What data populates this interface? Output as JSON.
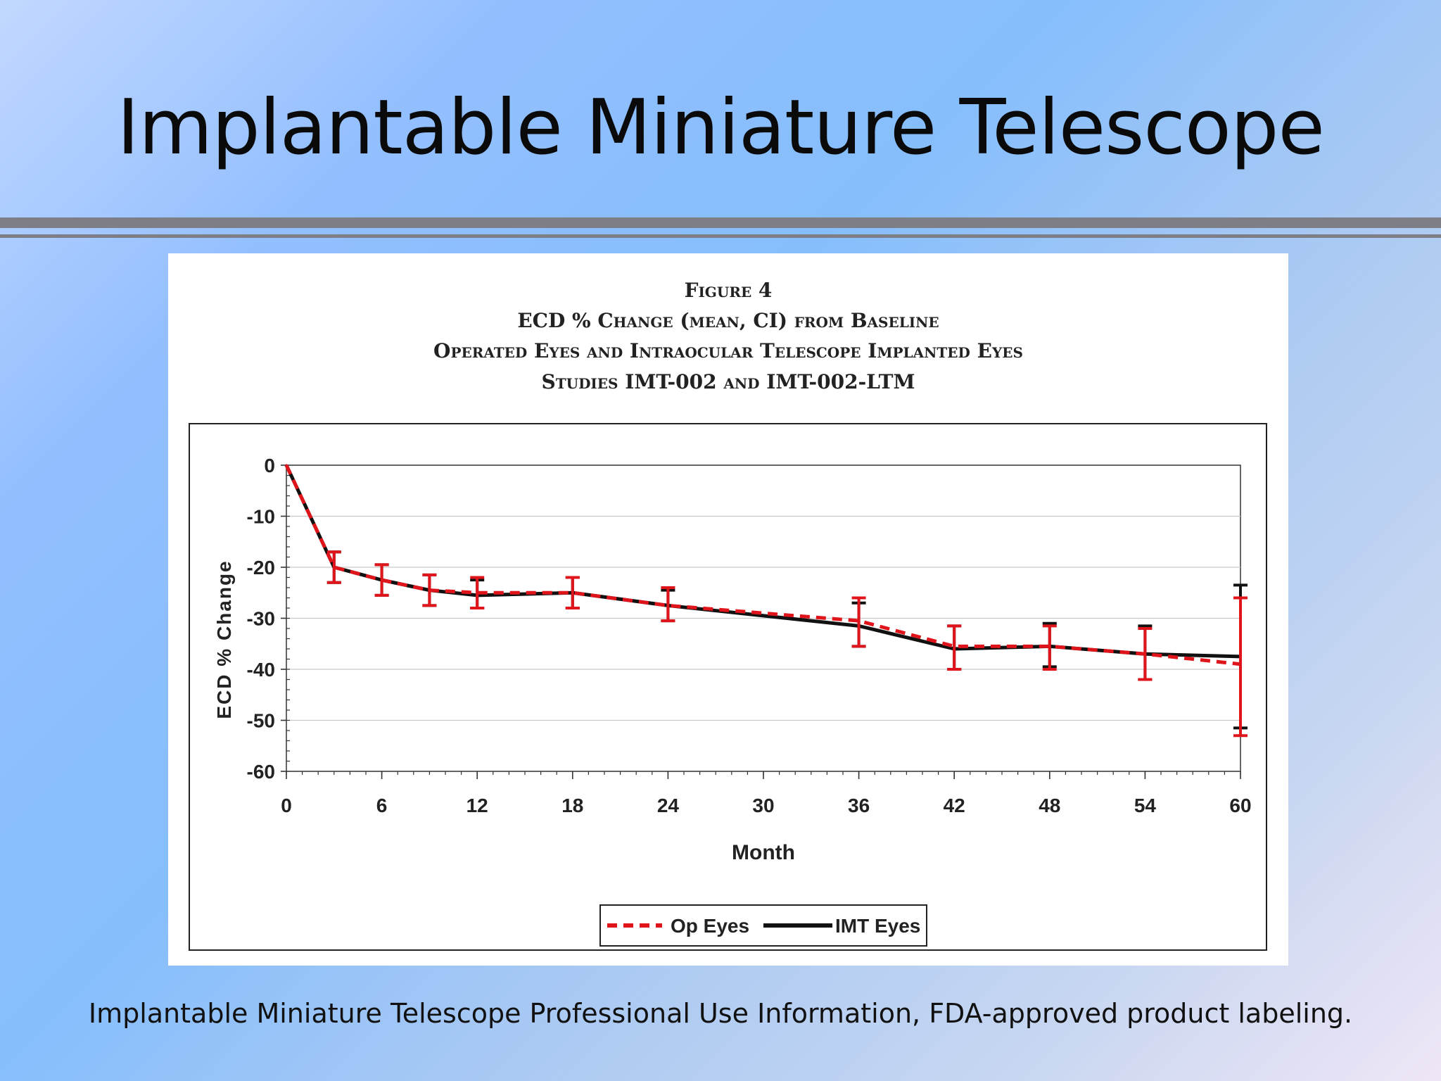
{
  "slide": {
    "title": "Implantable Miniature Telescope",
    "source": "Implantable Miniature Telescope Professional Use Information, FDA-approved product labeling."
  },
  "figure": {
    "caption_lines": [
      "Figure 4",
      "ECD % Change (mean, CI) from Baseline",
      "Operated Eyes and Intraocular Telescope Implanted Eyes",
      "Studies IMT-002 and IMT-002-LTM"
    ]
  },
  "chart_data": {
    "type": "line",
    "xlabel": "Month",
    "ylabel": "ECD % Change",
    "xlim": [
      0,
      60
    ],
    "ylim": [
      -60,
      0
    ],
    "xticks": [
      0,
      6,
      12,
      18,
      24,
      30,
      36,
      42,
      48,
      54,
      60
    ],
    "yticks": [
      0,
      -10,
      -20,
      -30,
      -40,
      -50,
      -60
    ],
    "grid": "horizontal",
    "legend_position": "bottom-center",
    "series": [
      {
        "name": "Op Eyes",
        "color": "#e0151b",
        "style": "dashed",
        "x": [
          0,
          3,
          6,
          9,
          12,
          18,
          24,
          36,
          42,
          48,
          54,
          60
        ],
        "y": [
          0,
          -20,
          -22.5,
          -24.5,
          -25,
          -25,
          -27.5,
          -30.5,
          -35.5,
          -35.5,
          -37,
          -39
        ],
        "ci_low": [
          0,
          -23,
          -25.5,
          -27.5,
          -28,
          -28,
          -30.5,
          -35.5,
          -40,
          -40,
          -42,
          -53
        ],
        "ci_high": [
          0,
          -17,
          -19.5,
          -21.5,
          -22,
          -22,
          -24,
          -26,
          -31.5,
          -31.5,
          -32,
          -26
        ]
      },
      {
        "name": "IMT Eyes",
        "color": "#111111",
        "style": "solid",
        "x": [
          0,
          3,
          6,
          9,
          12,
          18,
          24,
          36,
          42,
          48,
          54,
          60
        ],
        "y": [
          0,
          -20,
          -22.5,
          -24.5,
          -25.5,
          -25,
          -27.5,
          -31.5,
          -36,
          -35.5,
          -37,
          -37.5
        ],
        "ci_low": [
          0,
          -23,
          -25.5,
          -27.5,
          -28,
          -28,
          -30.5,
          -35.5,
          -40,
          -39.5,
          -42,
          -51.5
        ],
        "ci_high": [
          0,
          -17,
          -19.5,
          -21.5,
          -22.5,
          -22,
          -24.5,
          -27,
          -31.5,
          -31,
          -31.5,
          -23.5
        ]
      }
    ]
  }
}
